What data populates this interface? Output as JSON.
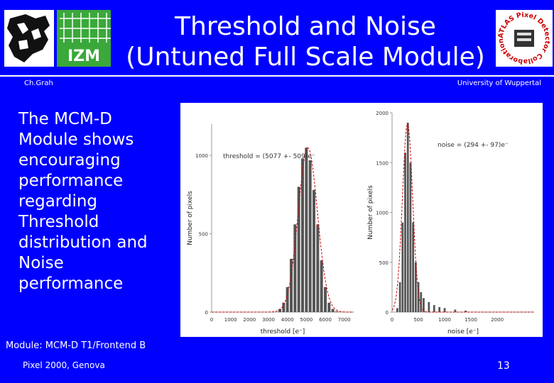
{
  "header": {
    "title_line1": "Threshold and Noise",
    "title_line2": "(Untuned Full Scale Module)",
    "author": "Ch.Grah",
    "affiliation": "University of Wuppertal",
    "izm_label": "IZM",
    "atlas_logo_text": "ATLAS Pixel Detector Collaboration"
  },
  "body": {
    "text": "The MCM-D Module shows encouraging performance regarding Threshold distribution and Noise performance",
    "module_label": "Module: MCM-D T1/Frontend B"
  },
  "footer": {
    "left": "Pixel 2000, Genova",
    "page_number": "13"
  },
  "colors": {
    "background": "#0000ff",
    "text": "#ffffff",
    "histogram_bars": "#555555",
    "fit_curve": "#cc0000"
  },
  "chart_data": [
    {
      "type": "bar",
      "title": "",
      "xlabel": "threshold [e⁻]",
      "ylabel": "Number of pixels",
      "annotation": "threshold = (5077 +- 509)e⁻",
      "xlim": [
        0,
        7500
      ],
      "ylim": [
        0,
        1200
      ],
      "x_ticks": [
        0,
        1000,
        2000,
        3000,
        4000,
        5000,
        6000,
        7000
      ],
      "y_ticks": [
        0,
        500,
        1000
      ],
      "fit": {
        "kind": "gaussian",
        "mean": 5077,
        "sigma": 509
      },
      "x": [
        3600,
        3800,
        4000,
        4200,
        4400,
        4600,
        4800,
        5000,
        5200,
        5400,
        5600,
        5800,
        6000,
        6200,
        6400,
        6600
      ],
      "values": [
        20,
        60,
        160,
        340,
        560,
        800,
        980,
        1050,
        970,
        780,
        560,
        330,
        160,
        60,
        20,
        5
      ]
    },
    {
      "type": "bar",
      "title": "",
      "xlabel": "noise [e⁻]",
      "ylabel": "Number of pixels",
      "annotation": "noise = (294 +- 97)e⁻",
      "xlim": [
        0,
        2700
      ],
      "ylim": [
        0,
        2000
      ],
      "x_ticks": [
        0,
        500,
        1000,
        1500,
        2000
      ],
      "y_ticks": [
        0,
        500,
        1000,
        1500,
        2000
      ],
      "fit": {
        "kind": "gaussian",
        "mean": 294,
        "sigma": 97
      },
      "x": [
        100,
        150,
        200,
        250,
        300,
        350,
        400,
        450,
        500,
        550,
        600,
        700,
        800,
        900,
        1000,
        1200,
        1400
      ],
      "values": [
        40,
        300,
        900,
        1600,
        1900,
        1500,
        900,
        500,
        300,
        200,
        140,
        100,
        70,
        50,
        40,
        25,
        15
      ]
    }
  ]
}
